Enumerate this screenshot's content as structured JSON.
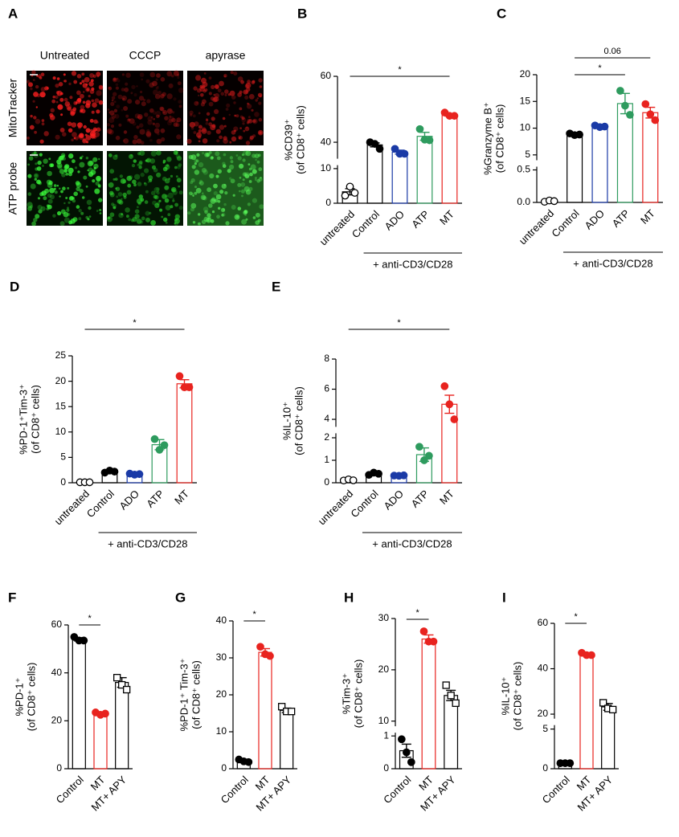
{
  "panel_a": {
    "panel": "A",
    "columns": [
      "Untreated",
      "CCCP",
      "apyrase"
    ],
    "rows": [
      "MitoTracker",
      "ATP probe"
    ]
  },
  "chart_data": [
    {
      "type": "bar",
      "panel": "B",
      "ylabel": [
        "%CD39⁺",
        "(of CD8⁺ cells)"
      ],
      "categories": [
        "untreated",
        "Control",
        "ADO",
        "ATP",
        "MT"
      ],
      "colors": [
        "#000000",
        "#000000",
        "#1a3aa6",
        "#2e9b5e",
        "#e8231f"
      ],
      "markers": [
        "open-circle",
        "circle",
        "circle",
        "circle",
        "circle"
      ],
      "values": [
        3.3,
        39.2,
        37,
        41.8,
        48.3
      ],
      "errors": [
        0.9,
        0.6,
        0.6,
        1.2,
        0.4
      ],
      "points": [
        [
          2.2,
          4.8,
          3
        ],
        [
          40,
          39.5,
          38
        ],
        [
          38,
          36.5,
          36.5
        ],
        [
          44,
          40.8,
          40.6
        ],
        [
          49,
          48,
          48
        ]
      ],
      "segments": [
        {
          "ylim": [
            0,
            11
          ],
          "yticks": [
            0,
            10
          ]
        },
        {
          "ylim": [
            35,
            60
          ],
          "yticks": [
            40,
            60
          ]
        }
      ],
      "significance": [
        {
          "from": "untreated",
          "to": "MT",
          "label": "*"
        }
      ],
      "group_label": "+ anti-CD3/CD28"
    },
    {
      "type": "bar",
      "panel": "C",
      "ylabel": [
        "%Granzyme B⁺",
        "(of CD8⁺ cells)"
      ],
      "categories": [
        "untreated",
        "Control",
        "ADO",
        "ATP",
        "MT"
      ],
      "colors": [
        "#000000",
        "#000000",
        "#1a3aa6",
        "#2e9b5e",
        "#e8231f"
      ],
      "markers": [
        "open-circle",
        "circle",
        "circle",
        "circle",
        "circle"
      ],
      "values": [
        0.02,
        8.8,
        10.3,
        14.6,
        12.9
      ],
      "errors": [
        0.01,
        0.3,
        0.2,
        1.9,
        1
      ],
      "points": [
        [
          0.01,
          0.03,
          0.02
        ],
        [
          9,
          8.7,
          8.8
        ],
        [
          10.5,
          10.2,
          10.3
        ],
        [
          17,
          14.2,
          12.5
        ],
        [
          14.5,
          12.6,
          11.5
        ]
      ],
      "segments": [
        {
          "ylim": [
            0,
            0.55
          ],
          "yticks": [
            {
              "value": 0,
              "label": "0.0"
            },
            {
              "value": 0.5,
              "label": "0.5"
            }
          ]
        },
        {
          "ylim": [
            4,
            20
          ],
          "yticks": [
            5,
            10,
            15,
            20
          ]
        }
      ],
      "significance": [
        {
          "from": "Control",
          "to": "ATP",
          "label": "*"
        },
        {
          "from": "Control",
          "to": "MT",
          "label": "0.06"
        }
      ],
      "group_label": "+ anti-CD3/CD28"
    },
    {
      "type": "bar",
      "panel": "D",
      "ylabel": [
        "%PD-1⁺Tim-3⁺",
        "(of CD8⁺ cells)"
      ],
      "categories": [
        "untreated",
        "Control",
        "ADO",
        "ATP",
        "MT"
      ],
      "colors": [
        "#000000",
        "#000000",
        "#1a3aa6",
        "#2e9b5e",
        "#e8231f"
      ],
      "markers": [
        "open-circle",
        "circle",
        "circle",
        "circle",
        "circle"
      ],
      "values": [
        0.1,
        2.2,
        1.7,
        7.5,
        19.5
      ],
      "errors": [
        0.05,
        0.2,
        0.1,
        1,
        0.8
      ],
      "points": [
        [
          0.1,
          0.1,
          0.1
        ],
        [
          2,
          2.4,
          2.2
        ],
        [
          1.8,
          1.6,
          1.7
        ],
        [
          8.6,
          6.5,
          7.4
        ],
        [
          21,
          18.8,
          18.8
        ]
      ],
      "ylim": [
        0,
        25
      ],
      "yticks": [
        0,
        5,
        10,
        15,
        20,
        25
      ],
      "significance": [
        {
          "from": "untreated",
          "to": "MT",
          "label": "*"
        }
      ],
      "group_label": "+ anti-CD3/CD28"
    },
    {
      "type": "bar",
      "panel": "E",
      "ylabel": [
        "%IL-10⁺",
        "(of CD8⁺ cells)"
      ],
      "categories": [
        "untreated",
        "Control",
        "ADO",
        "ATP",
        "MT"
      ],
      "colors": [
        "#000000",
        "#000000",
        "#1a3aa6",
        "#2e9b5e",
        "#e8231f"
      ],
      "markers": [
        "open-circle",
        "circle",
        "circle",
        "circle",
        "circle"
      ],
      "values": [
        0.12,
        0.4,
        0.32,
        1.25,
        5
      ],
      "errors": [
        0.03,
        0.03,
        0.02,
        0.3,
        0.6
      ],
      "points": [
        [
          0.1,
          0.15,
          0.11
        ],
        [
          0.35,
          0.45,
          0.4
        ],
        [
          0.32,
          0.31,
          0.33
        ],
        [
          1.6,
          1,
          1.2
        ],
        [
          6.2,
          5,
          4
        ]
      ],
      "segments": [
        {
          "ylim": [
            0,
            2.2
          ],
          "yticks": [
            0,
            1,
            2
          ]
        },
        {
          "ylim": [
            3.5,
            8
          ],
          "yticks": [
            4,
            6,
            8
          ]
        }
      ],
      "significance": [
        {
          "from": "untreated",
          "to": "MT",
          "label": "*"
        }
      ],
      "group_label": "+ anti-CD3/CD28"
    },
    {
      "type": "bar",
      "panel": "F",
      "ylabel": [
        "%PD-1⁺",
        "(of CD8⁺ cells)"
      ],
      "categories": [
        "Control",
        "MT",
        "MT+ APY"
      ],
      "colors": [
        "#000000",
        "#e8231f",
        "#000000"
      ],
      "markers": [
        "circle",
        "circle",
        "open-square"
      ],
      "values": [
        54,
        23,
        36
      ],
      "errors": [
        0.7,
        0.4,
        2
      ],
      "points": [
        [
          55,
          53.5,
          53.5
        ],
        [
          23.5,
          22.5,
          23
        ],
        [
          38,
          35,
          33
        ]
      ],
      "ylim": [
        0,
        60
      ],
      "yticks": [
        0,
        20,
        40,
        60
      ],
      "significance": [
        {
          "from": "Control",
          "to": "MT",
          "label": "*"
        }
      ]
    },
    {
      "type": "bar",
      "panel": "G",
      "ylabel": [
        "%PD-1⁺ Tim-3⁺",
        "(of CD8⁺ cells)"
      ],
      "categories": [
        "Control",
        "MT",
        "MT+ APY"
      ],
      "colors": [
        "#000000",
        "#e8231f",
        "#000000"
      ],
      "markers": [
        "circle",
        "circle",
        "open-square"
      ],
      "values": [
        2.1,
        31.5,
        15.8
      ],
      "errors": [
        0.2,
        1,
        0.6
      ],
      "points": [
        [
          2.5,
          2,
          1.8
        ],
        [
          33,
          31,
          30.5
        ],
        [
          16.8,
          15.5,
          15.5
        ]
      ],
      "ylim": [
        0,
        40
      ],
      "yticks": [
        0,
        10,
        20,
        30,
        40
      ],
      "significance": [
        {
          "from": "Control",
          "to": "MT",
          "label": "*"
        }
      ]
    },
    {
      "type": "bar",
      "panel": "H",
      "ylabel": [
        "%Tim-3⁺",
        "(of CD8⁺ cells)"
      ],
      "categories": [
        "Control",
        "MT",
        "MT+ APY"
      ],
      "colors": [
        "#000000",
        "#e8231f",
        "#000000"
      ],
      "markers": [
        "circle",
        "circle",
        "open-square"
      ],
      "values": [
        0.55,
        26,
        15
      ],
      "errors": [
        0.2,
        0.8,
        1
      ],
      "points": [
        [
          0.9,
          0.5,
          0.2
        ],
        [
          27.5,
          25.5,
          25.5
        ],
        [
          17,
          15,
          13.5
        ]
      ],
      "segments": [
        {
          "ylim": [
            0,
            1.1
          ],
          "yticks": [
            0,
            1
          ]
        },
        {
          "ylim": [
            9,
            30
          ],
          "yticks": [
            10,
            20,
            30
          ]
        }
      ],
      "significance": [
        {
          "from": "Control",
          "to": "MT",
          "label": "*"
        }
      ]
    },
    {
      "type": "bar",
      "panel": "I",
      "ylabel": [
        "%IL-10⁺",
        "(of CD8⁺ cells)"
      ],
      "categories": [
        "Control",
        "MT",
        "MT+ APY"
      ],
      "colors": [
        "#000000",
        "#e8231f",
        "#000000"
      ],
      "markers": [
        "circle",
        "circle",
        "open-square"
      ],
      "values": [
        0.7,
        46.3,
        23.2
      ],
      "errors": [
        0.05,
        0.5,
        1.5
      ],
      "points": [
        [
          0.7,
          0.7,
          0.7
        ],
        [
          47,
          46,
          46
        ],
        [
          25,
          22.5,
          22
        ]
      ],
      "segments": [
        {
          "ylim": [
            0,
            5.5
          ],
          "yticks": [
            0,
            5
          ]
        },
        {
          "ylim": [
            18,
            60
          ],
          "yticks": [
            20,
            40,
            60
          ]
        }
      ],
      "significance": [
        {
          "from": "Control",
          "to": "MT",
          "label": "*"
        }
      ]
    }
  ]
}
